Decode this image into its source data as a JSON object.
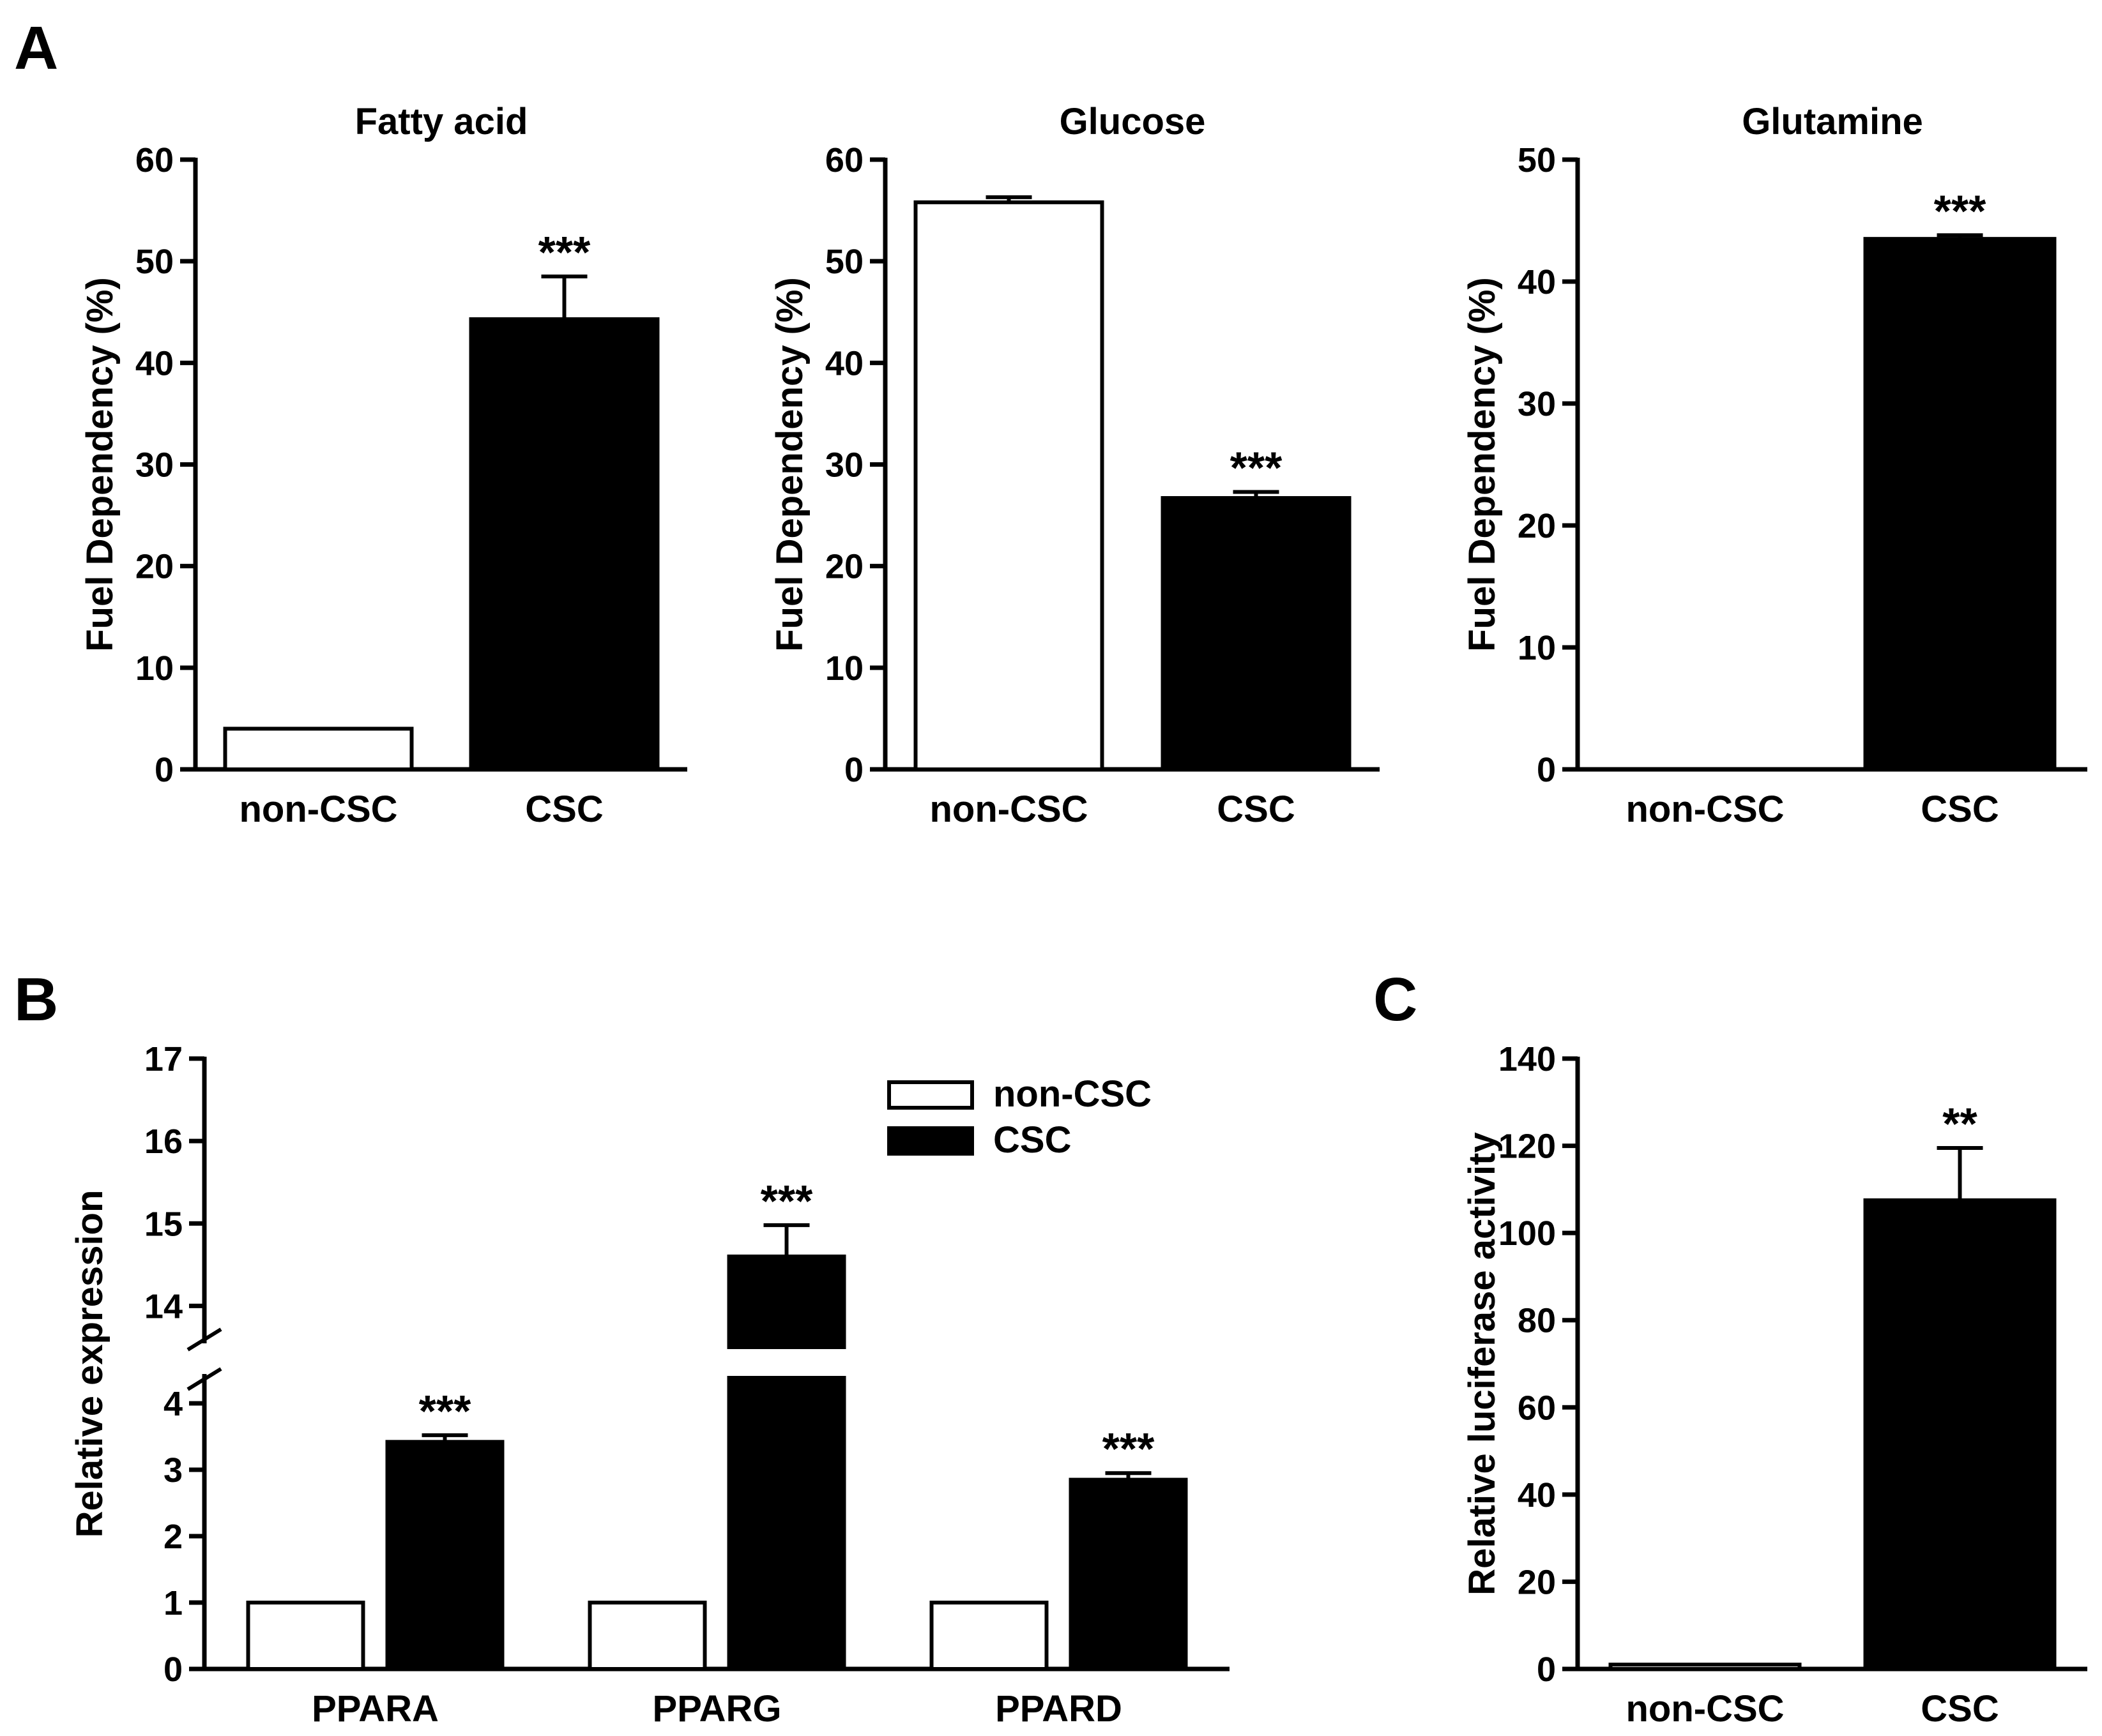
{
  "panels": {
    "A": {
      "letter": "A",
      "charts": [
        {
          "type": "bar",
          "title": "Fatty acid",
          "ylabel": "Fuel Dependency (%)",
          "ylim": [
            0,
            60
          ],
          "yticks": [
            0,
            10,
            20,
            30,
            40,
            50,
            60
          ],
          "categories": [
            "non-CSC",
            "CSC"
          ],
          "values": [
            4,
            44.3
          ],
          "errors": [
            0,
            4.2
          ],
          "fills": [
            "#ffffff",
            "#000000"
          ],
          "significance": [
            "",
            "***"
          ]
        },
        {
          "type": "bar",
          "title": "Glucose",
          "ylabel": "Fuel Dependency (%)",
          "ylim": [
            0,
            60
          ],
          "yticks": [
            0,
            10,
            20,
            30,
            40,
            50,
            60
          ],
          "categories": [
            "non-CSC",
            "CSC"
          ],
          "values": [
            55.8,
            26.7
          ],
          "errors": [
            0.5,
            0.6
          ],
          "fills": [
            "#ffffff",
            "#000000"
          ],
          "significance": [
            "",
            "***"
          ]
        },
        {
          "type": "bar",
          "title": "Glutamine",
          "ylabel": "Fuel Dependency (%)",
          "ylim": [
            0,
            50
          ],
          "yticks": [
            0,
            10,
            20,
            30,
            40,
            50
          ],
          "categories": [
            "non-CSC",
            "CSC"
          ],
          "values": [
            0,
            43.5
          ],
          "errors": [
            0,
            0.3
          ],
          "fills": [
            "#ffffff",
            "#000000"
          ],
          "significance": [
            "",
            "***"
          ]
        }
      ]
    },
    "B": {
      "letter": "B",
      "chart": {
        "type": "bar",
        "ylabel": "Relative expression",
        "axis_break": {
          "lower": [
            0,
            4.5
          ],
          "upper": [
            13.5,
            17
          ]
        },
        "yticks_lower": [
          0,
          1,
          2,
          3,
          4
        ],
        "yticks_upper": [
          14,
          15,
          16,
          17
        ],
        "categories": [
          "PPARA",
          "PPARG",
          "PPARD"
        ],
        "series": [
          {
            "name": "non-CSC",
            "fill": "#ffffff",
            "values": [
              1,
              1,
              1
            ],
            "errors": [
              0,
              0,
              0
            ],
            "significance": [
              "",
              "",
              ""
            ]
          },
          {
            "name": "CSC",
            "fill": "#000000",
            "values": [
              3.42,
              14.6,
              2.85
            ],
            "errors": [
              0.1,
              0.38,
              0.1
            ],
            "significance": [
              "***",
              "***",
              "***"
            ]
          }
        ]
      }
    },
    "C": {
      "letter": "C",
      "chart": {
        "type": "bar",
        "ylabel": "Relative luciferase activity",
        "ylim": [
          0,
          140
        ],
        "yticks": [
          0,
          20,
          40,
          60,
          80,
          100,
          120,
          140
        ],
        "categories": [
          "non-CSC",
          "CSC"
        ],
        "values": [
          1,
          107.5
        ],
        "errors": [
          0,
          12
        ],
        "fills": [
          "#ffffff",
          "#000000"
        ],
        "significance": [
          "",
          "**"
        ]
      }
    }
  }
}
